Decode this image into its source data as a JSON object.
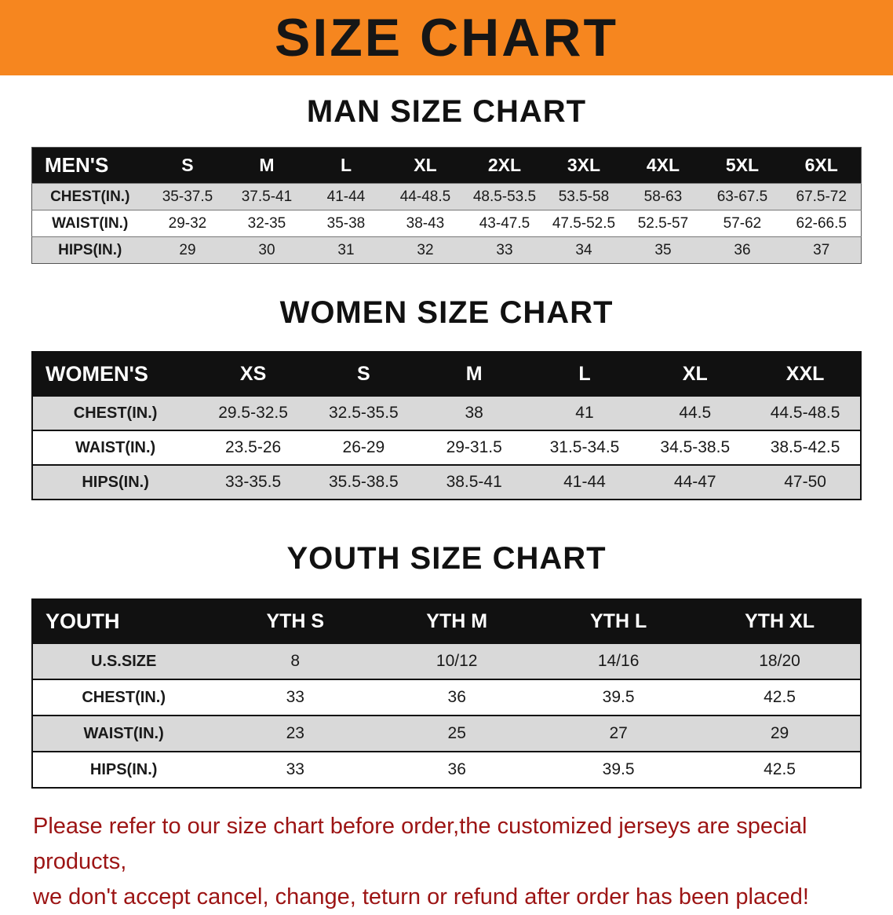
{
  "banner": {
    "title": "SIZE CHART"
  },
  "colors": {
    "banner_bg": "#f6861f",
    "table_header_bg": "#111111",
    "table_header_text": "#ffffff",
    "row_alt_bg": "#d9d9d9",
    "notice_text": "#9c1414"
  },
  "sections": [
    {
      "heading": "MAN SIZE CHART",
      "table": {
        "header": [
          "MEN'S",
          "S",
          "M",
          "L",
          "XL",
          "2XL",
          "3XL",
          "4XL",
          "5XL",
          "6XL"
        ],
        "rows": [
          [
            "CHEST(IN.)",
            "35-37.5",
            "37.5-41",
            "41-44",
            "44-48.5",
            "48.5-53.5",
            "53.5-58",
            "58-63",
            "63-67.5",
            "67.5-72"
          ],
          [
            "WAIST(IN.)",
            "29-32",
            "32-35",
            "35-38",
            "38-43",
            "43-47.5",
            "47.5-52.5",
            "52.5-57",
            "57-62",
            "62-66.5"
          ],
          [
            "HIPS(IN.)",
            "29",
            "30",
            "31",
            "32",
            "33",
            "34",
            "35",
            "36",
            "37"
          ]
        ]
      }
    },
    {
      "heading": "WOMEN SIZE CHART",
      "table": {
        "header": [
          "WOMEN'S",
          "XS",
          "S",
          "M",
          "L",
          "XL",
          "XXL"
        ],
        "rows": [
          [
            "CHEST(IN.)",
            "29.5-32.5",
            "32.5-35.5",
            "38",
            "41",
            "44.5",
            "44.5-48.5"
          ],
          [
            "WAIST(IN.)",
            "23.5-26",
            "26-29",
            "29-31.5",
            "31.5-34.5",
            "34.5-38.5",
            "38.5-42.5"
          ],
          [
            "HIPS(IN.)",
            "33-35.5",
            "35.5-38.5",
            "38.5-41",
            "41-44",
            "44-47",
            "47-50"
          ]
        ]
      }
    },
    {
      "heading": "YOUTH SIZE CHART",
      "table": {
        "header": [
          "YOUTH",
          "YTH S",
          "YTH M",
          "YTH L",
          "YTH XL"
        ],
        "rows": [
          [
            "U.S.SIZE",
            "8",
            "10/12",
            "14/16",
            "18/20"
          ],
          [
            "CHEST(IN.)",
            "33",
            "36",
            "39.5",
            "42.5"
          ],
          [
            "WAIST(IN.)",
            "23",
            "25",
            "27",
            "29"
          ],
          [
            "HIPS(IN.)",
            "33",
            "36",
            "39.5",
            "42.5"
          ]
        ]
      }
    }
  ],
  "footer": {
    "line1": "Please refer to our size chart before order,the customized jerseys are special products,",
    "line2": "we don't accept cancel, change, teturn or refund after order has been placed!"
  }
}
